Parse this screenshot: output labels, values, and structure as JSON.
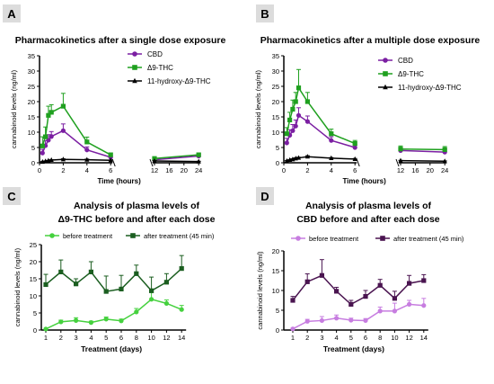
{
  "colors": {
    "cbd_purple": "#7b1fa2",
    "thc_green": "#1fa01f",
    "hydroxy_black": "#000000",
    "green_before": "#45d13e",
    "green_after": "#1b5e20",
    "purple_before": "#c77de0",
    "purple_after": "#4a1450",
    "panel_letter_bg": "#dcdcdc"
  },
  "chart_data": [
    {
      "panel": "A",
      "type": "line",
      "title": "Pharmacokinetics after a single dose exposure",
      "xlabel": "Time (hours)",
      "ylabel": "cannabinoid levels (ng/ml)",
      "ylim": [
        0,
        35
      ],
      "yticks": [
        "0",
        "5",
        "10",
        "15",
        "20",
        "25",
        "30",
        "35"
      ],
      "xticks": [
        "0",
        "2",
        "4",
        "6",
        "12",
        "16",
        "20",
        "24"
      ],
      "axis_break": [
        6,
        12
      ],
      "legend_position": "top-right",
      "series": [
        {
          "name": "CBD",
          "marker": "circle",
          "color_key": "cbd_purple",
          "x": [
            0.25,
            0.5,
            0.75,
            1,
            2,
            4,
            6,
            12,
            24
          ],
          "y": [
            3.2,
            5.6,
            7.4,
            8.6,
            10.5,
            4.2,
            1.8,
            1.0,
            2.2
          ],
          "err": [
            1.2,
            1.6,
            1.8,
            1.6,
            2.2,
            1.0,
            0.6,
            0.3,
            0.6
          ]
        },
        {
          "name": "Δ9-THC",
          "marker": "square",
          "color_key": "thc_green",
          "x": [
            0.25,
            0.5,
            0.75,
            1,
            2,
            4,
            6,
            12,
            24
          ],
          "y": [
            5.5,
            8.5,
            15.5,
            16.5,
            18.5,
            6.8,
            2.6,
            1.4,
            2.6
          ],
          "err": [
            3.0,
            3.2,
            3.0,
            2.5,
            4.2,
            1.6,
            0.6,
            0.4,
            0.6
          ]
        },
        {
          "name": "11-hydroxy-Δ9-THC",
          "marker": "triangle",
          "color_key": "hydroxy_black",
          "x": [
            0.25,
            0.5,
            0.75,
            1,
            2,
            4,
            6,
            12,
            24
          ],
          "y": [
            0.3,
            0.5,
            0.7,
            0.9,
            1.1,
            1.0,
            0.8,
            0.6,
            0.4
          ],
          "err": [
            0.1,
            0.1,
            0.1,
            0.1,
            0.2,
            0.2,
            0.1,
            0.1,
            0.1
          ]
        }
      ]
    },
    {
      "panel": "B",
      "type": "line",
      "title": "Pharmacokinetics after a multiple dose exposure",
      "xlabel": "Time (hours)",
      "ylabel": "cannabinoid levels (ng/ml)",
      "ylim": [
        0,
        35
      ],
      "yticks": [
        "0",
        "5",
        "10",
        "15",
        "20",
        "25",
        "30",
        "35"
      ],
      "xticks": [
        "0",
        "2",
        "4",
        "6",
        "12",
        "16",
        "20",
        "24"
      ],
      "axis_break": [
        6,
        12
      ],
      "legend_position": "top-right",
      "series": [
        {
          "name": "CBD",
          "marker": "circle",
          "color_key": "cbd_purple",
          "x": [
            0.25,
            0.5,
            0.75,
            1,
            1.25,
            2,
            4,
            6,
            12,
            24
          ],
          "y": [
            6.5,
            9.0,
            10.5,
            12.0,
            15.5,
            13.5,
            7.3,
            5.0,
            4.0,
            3.5
          ],
          "err": [
            1.5,
            1.8,
            2.0,
            2.0,
            2.5,
            1.8,
            1.2,
            0.8,
            0.8,
            0.8
          ]
        },
        {
          "name": "Δ9-THC",
          "marker": "square",
          "color_key": "thc_green",
          "x": [
            0.25,
            0.5,
            0.75,
            1,
            1.25,
            2,
            4,
            6,
            12,
            24
          ],
          "y": [
            9.5,
            14.0,
            17.5,
            20.0,
            24.5,
            20.0,
            9.5,
            6.3,
            4.5,
            4.3
          ],
          "err": [
            2.0,
            2.5,
            3.0,
            3.0,
            6.0,
            3.0,
            1.5,
            1.0,
            1.0,
            1.0
          ]
        },
        {
          "name": "11-hydroxy-Δ9-THC",
          "marker": "triangle",
          "color_key": "hydroxy_black",
          "x": [
            0.25,
            0.5,
            0.75,
            1,
            1.25,
            2,
            4,
            6,
            12,
            24
          ],
          "y": [
            0.6,
            0.9,
            1.1,
            1.4,
            1.6,
            2.0,
            1.5,
            1.2,
            0.7,
            0.5
          ],
          "err": [
            0.1,
            0.1,
            0.2,
            0.2,
            0.2,
            0.3,
            0.2,
            0.2,
            0.1,
            0.1
          ]
        }
      ]
    },
    {
      "panel": "C",
      "type": "line",
      "title_line1": "Analysis of plasma levels of",
      "title_line2": "Δ9-THC before and after each dose",
      "xlabel": "Treatment (days)",
      "ylabel": "cannabinoid levels (ng/ml)",
      "ylim": [
        0,
        25
      ],
      "yticks": [
        "0",
        "5",
        "10",
        "15",
        "20",
        "25"
      ],
      "categories": [
        "1",
        "2",
        "3",
        "4",
        "5",
        "6",
        "8",
        "10",
        "12",
        "14"
      ],
      "legend_position": "top",
      "series": [
        {
          "name": "before treatment",
          "marker": "circle",
          "color_key": "green_before",
          "values": [
            0.3,
            2.4,
            2.8,
            2.2,
            3.2,
            2.7,
            5.3,
            9.0,
            7.8,
            6.0
          ],
          "err": [
            0.2,
            0.5,
            0.8,
            0.4,
            0.6,
            0.5,
            1.0,
            2.0,
            1.0,
            1.2
          ]
        },
        {
          "name": "after treatment (45 min)",
          "marker": "square",
          "color_key": "green_after",
          "values": [
            13.3,
            17.0,
            13.5,
            17.0,
            11.3,
            12.0,
            16.5,
            11.5,
            14.0,
            18.0
          ],
          "err": [
            3.0,
            3.5,
            1.5,
            3.0,
            4.5,
            4.0,
            2.5,
            4.0,
            2.5,
            3.8
          ]
        }
      ]
    },
    {
      "panel": "D",
      "type": "line",
      "title_line1": "Analysis of plasma levels of",
      "title_line2": "CBD before and after each dose",
      "xlabel": "Treatment (days)",
      "ylabel": "cannabinoid levels (ng/ml)",
      "ylim": [
        0,
        20
      ],
      "yticks": [
        "0",
        "5",
        "10",
        "15",
        "20"
      ],
      "categories": [
        "1",
        "2",
        "3",
        "4",
        "5",
        "6",
        "8",
        "10",
        "12",
        "14"
      ],
      "legend_position": "top",
      "series": [
        {
          "name": "before treatment",
          "marker": "circle",
          "color_key": "purple_before",
          "values": [
            0.3,
            2.2,
            2.4,
            3.0,
            2.5,
            2.4,
            4.8,
            4.8,
            6.5,
            6.2
          ],
          "err": [
            0.2,
            0.5,
            1.0,
            0.8,
            0.5,
            0.5,
            1.0,
            2.0,
            1.0,
            1.8
          ]
        },
        {
          "name": "after treatment (45 min)",
          "marker": "square",
          "color_key": "purple_after",
          "values": [
            7.5,
            12.2,
            13.8,
            9.8,
            6.5,
            8.5,
            11.3,
            8.0,
            11.8,
            12.5
          ],
          "err": [
            1.0,
            2.0,
            4.0,
            1.0,
            1.0,
            1.5,
            1.5,
            1.8,
            2.0,
            1.5
          ]
        }
      ]
    }
  ]
}
